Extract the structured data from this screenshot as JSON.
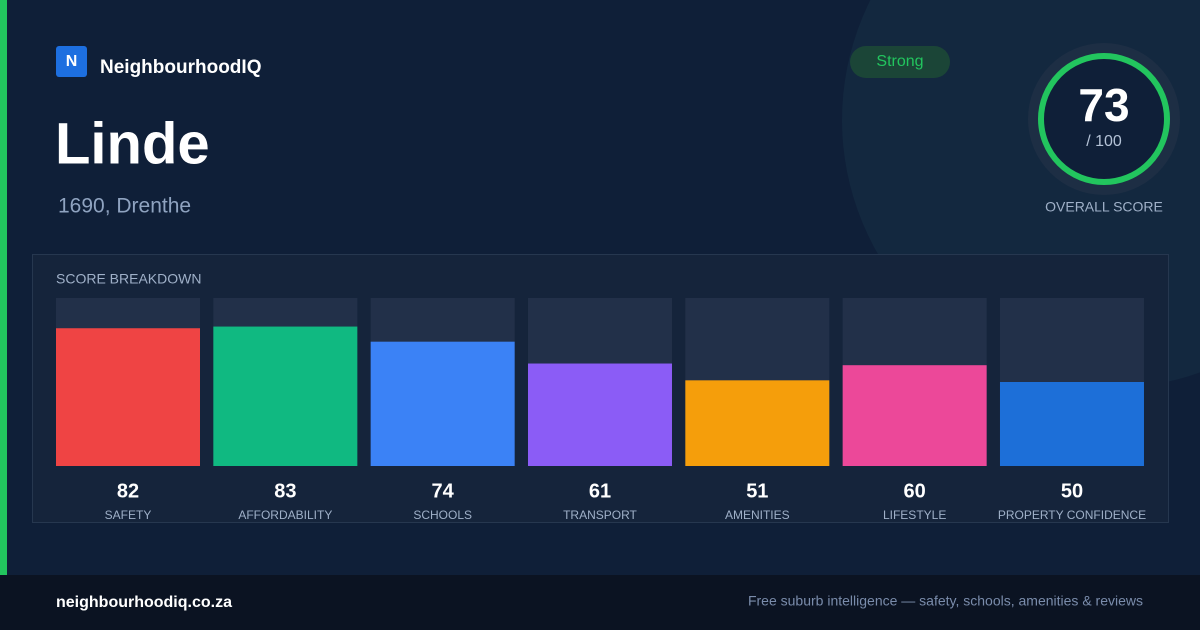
{
  "brand": "NeighbourhoodIQ",
  "logo_letter": "N",
  "title": "Linde",
  "subtitle": "1690, Drenthe",
  "badge": "Strong",
  "overall": {
    "score": 73,
    "max_label": "/ 100",
    "label": "OVERALL SCORE"
  },
  "chart_data": {
    "type": "bar",
    "title": "SCORE BREAKDOWN",
    "categories": [
      "SAFETY",
      "AFFORDABILITY",
      "SCHOOLS",
      "TRANSPORT",
      "AMENITIES",
      "LIFESTYLE",
      "PROPERTY CONFIDENCE"
    ],
    "values": [
      82,
      83,
      74,
      61,
      51,
      60,
      50
    ],
    "colors": [
      "#ef4444",
      "#10b981",
      "#3b82f6",
      "#8b5cf6",
      "#f59e0b",
      "#ec4899",
      "#1d6fd8"
    ],
    "ylim": [
      0,
      100
    ]
  },
  "footer": {
    "site": "neighbourhoodiq.co.za",
    "tagline": "Free suburb intelligence — safety, schools, amenities & reviews"
  }
}
